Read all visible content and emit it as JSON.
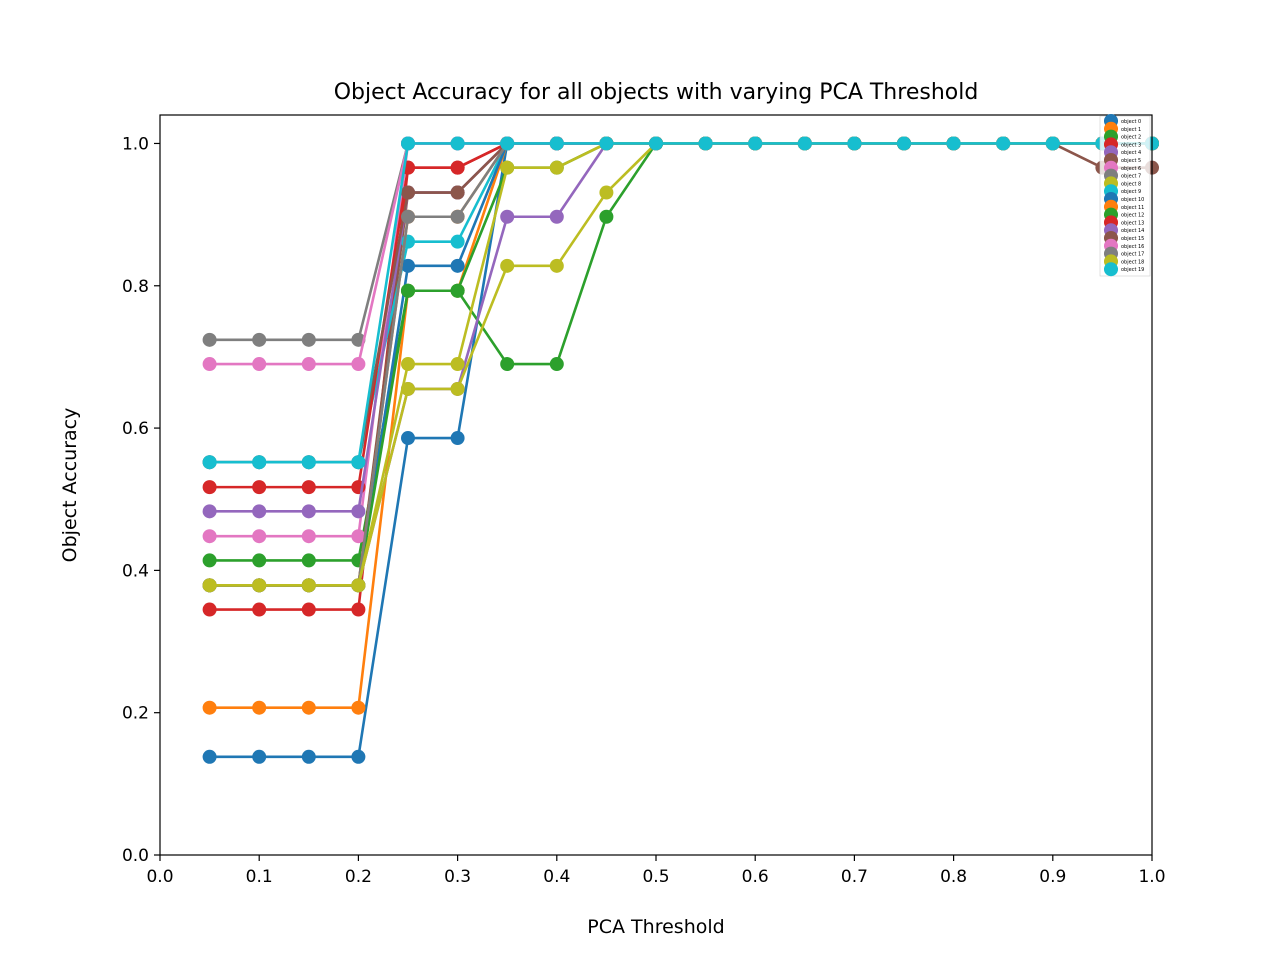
{
  "chart_data": {
    "type": "line",
    "title": "Object Accuracy for all objects with varying PCA Threshold",
    "xlabel": "PCA Threshold",
    "ylabel": "Object Accuracy",
    "xlim": [
      0.0,
      1.0
    ],
    "ylim": [
      0.0,
      1.04
    ],
    "xticks": [
      "0.0",
      "0.1",
      "0.2",
      "0.3",
      "0.4",
      "0.5",
      "0.6",
      "0.7",
      "0.8",
      "0.9",
      "1.0"
    ],
    "yticks": [
      "0.0",
      "0.2",
      "0.4",
      "0.6",
      "0.8",
      "1.0"
    ],
    "grid": false,
    "legend_position": "top-right",
    "x": [
      0.05,
      0.1,
      0.15,
      0.2,
      0.25,
      0.3,
      0.35,
      0.4,
      0.45,
      0.5,
      0.55,
      0.6,
      0.65,
      0.7,
      0.75,
      0.8,
      0.85,
      0.9,
      0.95,
      1.0
    ],
    "series": [
      {
        "name": "object 0",
        "color": "#1f77b4",
        "values": [
          0.138,
          0.138,
          0.138,
          0.138,
          0.586,
          0.586,
          1.0,
          1.0,
          1.0,
          1.0,
          1.0,
          1.0,
          1.0,
          1.0,
          1.0,
          1.0,
          1.0,
          1.0,
          1.0,
          1.0
        ]
      },
      {
        "name": "object 1",
        "color": "#ff7f0e",
        "values": [
          0.207,
          0.207,
          0.207,
          0.207,
          0.793,
          0.793,
          1.0,
          1.0,
          1.0,
          1.0,
          1.0,
          1.0,
          1.0,
          1.0,
          1.0,
          1.0,
          1.0,
          1.0,
          1.0,
          1.0
        ]
      },
      {
        "name": "object 2",
        "color": "#2ca02c",
        "values": [
          0.414,
          0.414,
          0.414,
          0.414,
          0.793,
          0.793,
          0.69,
          0.69,
          0.897,
          1.0,
          1.0,
          1.0,
          1.0,
          1.0,
          1.0,
          1.0,
          1.0,
          1.0,
          1.0,
          1.0
        ]
      },
      {
        "name": "object 3",
        "color": "#d62728",
        "values": [
          0.345,
          0.345,
          0.345,
          0.345,
          0.966,
          0.966,
          1.0,
          1.0,
          1.0,
          1.0,
          1.0,
          1.0,
          1.0,
          1.0,
          1.0,
          1.0,
          1.0,
          1.0,
          1.0,
          1.0
        ]
      },
      {
        "name": "object 4",
        "color": "#9467bd",
        "values": [
          0.379,
          0.379,
          0.379,
          0.379,
          0.655,
          0.655,
          0.897,
          0.897,
          1.0,
          1.0,
          1.0,
          1.0,
          1.0,
          1.0,
          1.0,
          1.0,
          1.0,
          1.0,
          1.0,
          1.0
        ]
      },
      {
        "name": "object 5",
        "color": "#8c564b",
        "values": [
          0.379,
          0.379,
          0.379,
          0.379,
          0.931,
          0.931,
          1.0,
          1.0,
          1.0,
          1.0,
          1.0,
          1.0,
          1.0,
          1.0,
          1.0,
          1.0,
          1.0,
          1.0,
          0.966,
          0.966
        ]
      },
      {
        "name": "object 6",
        "color": "#e377c2",
        "values": [
          0.448,
          0.448,
          0.448,
          0.448,
          1.0,
          1.0,
          1.0,
          1.0,
          1.0,
          1.0,
          1.0,
          1.0,
          1.0,
          1.0,
          1.0,
          1.0,
          1.0,
          1.0,
          1.0,
          1.0
        ]
      },
      {
        "name": "object 7",
        "color": "#7f7f7f",
        "values": [
          0.724,
          0.724,
          0.724,
          0.724,
          1.0,
          1.0,
          1.0,
          1.0,
          1.0,
          1.0,
          1.0,
          1.0,
          1.0,
          1.0,
          1.0,
          1.0,
          1.0,
          1.0,
          1.0,
          1.0
        ]
      },
      {
        "name": "object 8",
        "color": "#bcbd22",
        "values": [
          0.379,
          0.379,
          0.379,
          0.379,
          0.655,
          0.655,
          0.828,
          0.828,
          0.931,
          1.0,
          1.0,
          1.0,
          1.0,
          1.0,
          1.0,
          1.0,
          1.0,
          1.0,
          1.0,
          1.0
        ]
      },
      {
        "name": "object 9",
        "color": "#17becf",
        "values": [
          0.552,
          0.552,
          0.552,
          0.552,
          0.862,
          0.862,
          1.0,
          1.0,
          1.0,
          1.0,
          1.0,
          1.0,
          1.0,
          1.0,
          1.0,
          1.0,
          1.0,
          1.0,
          1.0,
          1.0
        ]
      },
      {
        "name": "object 10",
        "color": "#1f77b4",
        "values": [
          0.379,
          0.379,
          0.379,
          0.379,
          0.828,
          0.828,
          1.0,
          1.0,
          1.0,
          1.0,
          1.0,
          1.0,
          1.0,
          1.0,
          1.0,
          1.0,
          1.0,
          1.0,
          1.0,
          1.0
        ]
      },
      {
        "name": "object 11",
        "color": "#ff7f0e",
        "values": [
          0.379,
          0.379,
          0.379,
          0.379,
          0.897,
          0.897,
          1.0,
          1.0,
          1.0,
          1.0,
          1.0,
          1.0,
          1.0,
          1.0,
          1.0,
          1.0,
          1.0,
          1.0,
          1.0,
          1.0
        ]
      },
      {
        "name": "object 12",
        "color": "#2ca02c",
        "values": [
          0.379,
          0.379,
          0.379,
          0.379,
          0.793,
          0.793,
          0.966,
          0.966,
          1.0,
          1.0,
          1.0,
          1.0,
          1.0,
          1.0,
          1.0,
          1.0,
          1.0,
          1.0,
          1.0,
          1.0
        ]
      },
      {
        "name": "object 13",
        "color": "#d62728",
        "values": [
          0.517,
          0.517,
          0.517,
          0.517,
          0.966,
          0.966,
          1.0,
          1.0,
          1.0,
          1.0,
          1.0,
          1.0,
          1.0,
          1.0,
          1.0,
          1.0,
          1.0,
          1.0,
          1.0,
          1.0
        ]
      },
      {
        "name": "object 14",
        "color": "#9467bd",
        "values": [
          0.483,
          0.483,
          0.483,
          0.483,
          0.931,
          0.931,
          1.0,
          1.0,
          1.0,
          1.0,
          1.0,
          1.0,
          1.0,
          1.0,
          1.0,
          1.0,
          1.0,
          1.0,
          1.0,
          1.0
        ]
      },
      {
        "name": "object 15",
        "color": "#8c564b",
        "values": [
          0.552,
          0.552,
          0.552,
          0.552,
          0.931,
          0.931,
          1.0,
          1.0,
          1.0,
          1.0,
          1.0,
          1.0,
          1.0,
          1.0,
          1.0,
          1.0,
          1.0,
          1.0,
          1.0,
          1.0
        ]
      },
      {
        "name": "object 16",
        "color": "#e377c2",
        "values": [
          0.69,
          0.69,
          0.69,
          0.69,
          1.0,
          1.0,
          1.0,
          1.0,
          1.0,
          1.0,
          1.0,
          1.0,
          1.0,
          1.0,
          1.0,
          1.0,
          1.0,
          1.0,
          1.0,
          1.0
        ]
      },
      {
        "name": "object 17",
        "color": "#7f7f7f",
        "values": [
          0.379,
          0.379,
          0.379,
          0.379,
          0.897,
          0.897,
          1.0,
          1.0,
          1.0,
          1.0,
          1.0,
          1.0,
          1.0,
          1.0,
          1.0,
          1.0,
          1.0,
          1.0,
          1.0,
          1.0
        ]
      },
      {
        "name": "object 18",
        "color": "#bcbd22",
        "values": [
          0.379,
          0.379,
          0.379,
          0.379,
          0.69,
          0.69,
          0.966,
          0.966,
          1.0,
          1.0,
          1.0,
          1.0,
          1.0,
          1.0,
          1.0,
          1.0,
          1.0,
          1.0,
          1.0,
          1.0
        ]
      },
      {
        "name": "object 19",
        "color": "#17becf",
        "values": [
          0.552,
          0.552,
          0.552,
          0.552,
          1.0,
          1.0,
          1.0,
          1.0,
          1.0,
          1.0,
          1.0,
          1.0,
          1.0,
          1.0,
          1.0,
          1.0,
          1.0,
          1.0,
          1.0,
          1.0
        ]
      }
    ]
  }
}
